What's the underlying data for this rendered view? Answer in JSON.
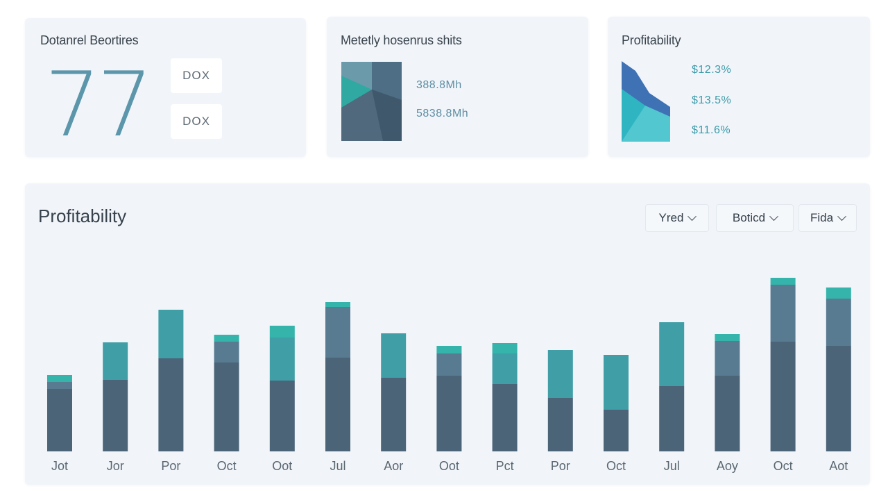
{
  "cards": [
    {
      "title": "Dotanrel Beortires",
      "big_value": "77",
      "chips": [
        "DOX",
        "DOX"
      ]
    },
    {
      "title": "Metetly hosenrus shits",
      "metrics": [
        "388.8Mh",
        "5838.8Mh"
      ]
    },
    {
      "title": "Profitability",
      "metrics": [
        "$12.3%",
        "$13.5%",
        "$11.6%"
      ]
    }
  ],
  "main": {
    "title": "Profitability",
    "filters": [
      "Yred",
      "Boticd",
      "Fida"
    ]
  },
  "colors": {
    "dark": "#4b6478",
    "mid": "#587b92",
    "teal": "#3f9ea6",
    "bright": "#34b4aa"
  },
  "chart_data": {
    "type": "bar",
    "categories": [
      "Jot",
      "Jor",
      "Por",
      "Oct",
      "Oot",
      "Jul",
      "Aor",
      "Oot",
      "Pct",
      "Por",
      "Oct",
      "Jul",
      "Aoy",
      "Oct",
      "Aot"
    ],
    "series": [
      {
        "values": [
          90,
          103,
          134,
          128,
          102,
          135,
          106,
          109,
          97,
          77,
          60,
          94,
          109,
          158,
          152
        ]
      },
      {
        "values": [
          10,
          54,
          70,
          30,
          62,
          73,
          64,
          32,
          44,
          69,
          79,
          92,
          50,
          82,
          68
        ]
      },
      {
        "values": [
          10,
          0,
          0,
          10,
          17,
          7,
          0,
          11,
          15,
          0,
          0,
          0,
          10,
          10,
          16
        ]
      }
    ],
    "ylim": [
      0,
      270
    ],
    "grid": false
  }
}
